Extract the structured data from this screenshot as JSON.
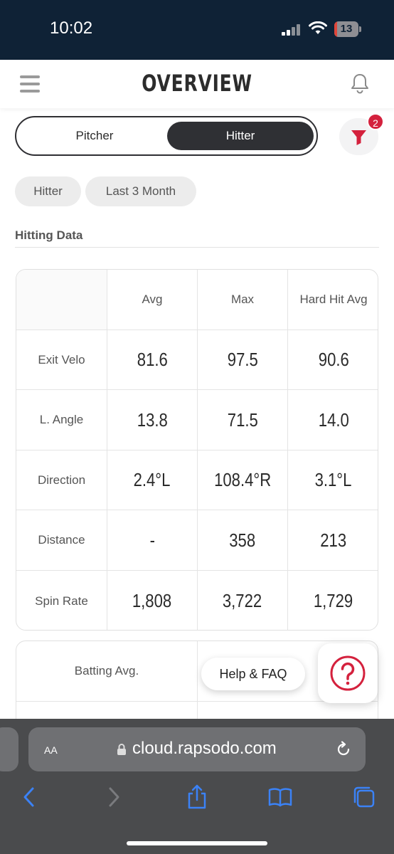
{
  "status_bar": {
    "time": "10:02",
    "battery": "13",
    "battery_level": 0.13
  },
  "header": {
    "title": "OVERVIEW",
    "menu_icon": "hamburger-icon",
    "notification_icon": "bell-icon"
  },
  "segment": {
    "options": [
      "Pitcher",
      "Hitter"
    ],
    "selected": "Hitter"
  },
  "filter": {
    "icon": "funnel-icon",
    "badge": "2",
    "accent": "#d4213d"
  },
  "chips": [
    "Hitter",
    "Last 3 Month"
  ],
  "section_title": "Hitting Data",
  "table": {
    "columns": [
      "Avg",
      "Max",
      "Hard Hit Avg"
    ],
    "rows": [
      {
        "label": "Exit Velo",
        "values": [
          "81.6",
          "97.5",
          "90.6"
        ]
      },
      {
        "label": "L. Angle",
        "values": [
          "13.8",
          "71.5",
          "14.0"
        ]
      },
      {
        "label": "Direction",
        "values": [
          "2.4°L",
          "108.4°R",
          "3.1°L"
        ]
      },
      {
        "label": "Distance",
        "values": [
          "-",
          "358",
          "213"
        ]
      },
      {
        "label": "Spin Rate",
        "values": [
          "1,808",
          "3,722",
          "1,729"
        ]
      }
    ]
  },
  "table2": {
    "header_left": "Batting Avg."
  },
  "help": {
    "label": "Help & FAQ",
    "icon": "question-icon"
  },
  "browser": {
    "aa_label": "AA",
    "url": "cloud.rapsodo.com",
    "icons": [
      "back-icon",
      "forward-icon",
      "share-icon",
      "bookmarks-icon",
      "tabs-icon"
    ]
  }
}
